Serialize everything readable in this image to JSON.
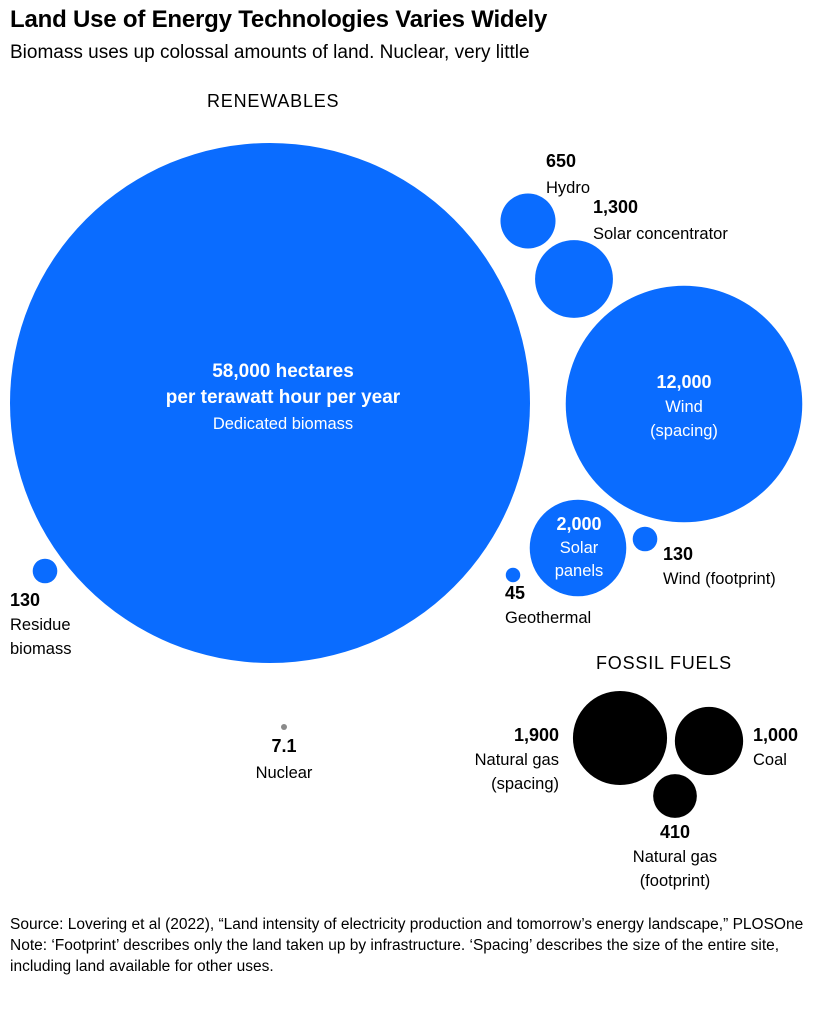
{
  "header": {
    "title": "Land Use of Energy Technologies Varies Widely",
    "subtitle": "Biomass uses up colossal amounts of land. Nuclear, very little"
  },
  "groups": {
    "renewables": "RENEWABLES",
    "fossil": "FOSSIL FUELS"
  },
  "colors": {
    "renewable": "#0a6cff",
    "fossil": "#000000",
    "nuclear": "#8a8a8a"
  },
  "chart_data": {
    "type": "bubble",
    "unit": "hectares per terawatt hour per year",
    "series": [
      {
        "category": "Dedicated biomass",
        "value": 58000,
        "value_label": "58,000",
        "group": "renewables",
        "label_lines": [
          "58,000 hectares",
          "per terawatt hour per year",
          "Dedicated biomass"
        ]
      },
      {
        "category": "Hydro",
        "value": 650,
        "value_label": "650",
        "group": "renewables",
        "label_lines": [
          "650",
          "Hydro"
        ]
      },
      {
        "category": "Solar concentrator",
        "value": 1300,
        "value_label": "1,300",
        "group": "renewables",
        "label_lines": [
          "1,300",
          "Solar concentrator"
        ]
      },
      {
        "category": "Wind (spacing)",
        "value": 12000,
        "value_label": "12,000",
        "group": "renewables",
        "label_lines": [
          "12,000",
          "Wind",
          "(spacing)"
        ]
      },
      {
        "category": "Solar panels",
        "value": 2000,
        "value_label": "2,000",
        "group": "renewables",
        "label_lines": [
          "2,000",
          "Solar",
          "panels"
        ]
      },
      {
        "category": "Wind (footprint)",
        "value": 130,
        "value_label": "130",
        "group": "renewables",
        "label_lines": [
          "130",
          "Wind (footprint)"
        ]
      },
      {
        "category": "Geothermal",
        "value": 45,
        "value_label": "45",
        "group": "renewables",
        "label_lines": [
          "45",
          "Geothermal"
        ]
      },
      {
        "category": "Residue biomass",
        "value": 130,
        "value_label": "130",
        "group": "renewables",
        "label_lines": [
          "130",
          "Residue",
          "biomass"
        ]
      },
      {
        "category": "Nuclear",
        "value": 7.1,
        "value_label": "7.1",
        "group": "nuclear",
        "label_lines": [
          "7.1",
          "Nuclear"
        ]
      },
      {
        "category": "Natural gas (spacing)",
        "value": 1900,
        "value_label": "1,900",
        "group": "fossil",
        "label_lines": [
          "1,900",
          "Natural gas",
          "(spacing)"
        ]
      },
      {
        "category": "Coal",
        "value": 1000,
        "value_label": "1,000",
        "group": "fossil",
        "label_lines": [
          "1,000",
          "Coal"
        ]
      },
      {
        "category": "Natural gas (footprint)",
        "value": 410,
        "value_label": "410",
        "group": "fossil",
        "label_lines": [
          "410",
          "Natural gas",
          "(footprint)"
        ]
      }
    ]
  },
  "footer": {
    "source": "Source: Lovering et al (2022), “Land intensity of electricity production and tomorrow’s energy landscape,” PLOSOne",
    "note": "Note: ‘Footprint’ describes only the land taken up by infrastructure. ‘Spacing’ describes the size of the entire site, including land available for other uses."
  }
}
